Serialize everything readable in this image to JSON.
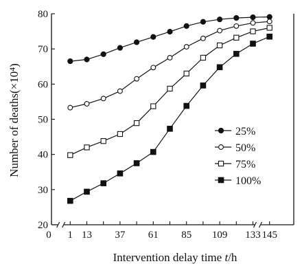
{
  "chart_data": {
    "type": "line",
    "xlabel": "Intervention delay time",
    "xlabel_var": "t",
    "xlabel_unit": "/h",
    "ylabel": "Number of deaths",
    "ylabel_unit": "(×10⁴)",
    "x": [
      "0",
      "1",
      "13",
      "",
      "37",
      "",
      "61",
      "",
      "85",
      "",
      "109",
      "",
      "133",
      "145"
    ],
    "ylim": [
      20,
      80
    ],
    "yticks": [
      20,
      30,
      40,
      50,
      60,
      70,
      80
    ],
    "grid": false,
    "legend_position": "center-right",
    "series": [
      {
        "name": "25%",
        "marker": "filled-circle",
        "points": [
          [
            1,
            66.5
          ],
          [
            13,
            67.0
          ],
          [
            25,
            68.5
          ],
          [
            37,
            70.3
          ],
          [
            49,
            71.9
          ],
          [
            61,
            73.4
          ],
          [
            73,
            74.9
          ],
          [
            85,
            76.5
          ],
          [
            97,
            77.7
          ],
          [
            109,
            78.4
          ],
          [
            121,
            78.8
          ],
          [
            133,
            79.0
          ],
          [
            145,
            79.1
          ]
        ]
      },
      {
        "name": "50%",
        "marker": "open-circle",
        "points": [
          [
            1,
            53.3
          ],
          [
            13,
            54.4
          ],
          [
            25,
            55.9
          ],
          [
            37,
            58.0
          ],
          [
            49,
            61.5
          ],
          [
            61,
            64.7
          ],
          [
            73,
            67.5
          ],
          [
            85,
            70.6
          ],
          [
            97,
            73.0
          ],
          [
            109,
            75.2
          ],
          [
            121,
            76.5
          ],
          [
            133,
            77.4
          ],
          [
            145,
            77.8
          ]
        ]
      },
      {
        "name": "75%",
        "marker": "open-square",
        "points": [
          [
            1,
            39.8
          ],
          [
            13,
            42.0
          ],
          [
            25,
            43.8
          ],
          [
            37,
            45.8
          ],
          [
            49,
            48.9
          ],
          [
            61,
            53.7
          ],
          [
            73,
            58.7
          ],
          [
            85,
            63.0
          ],
          [
            97,
            67.5
          ],
          [
            109,
            71.0
          ],
          [
            121,
            73.2
          ],
          [
            133,
            75.0
          ],
          [
            145,
            76.0
          ]
        ]
      },
      {
        "name": "100%",
        "marker": "filled-square",
        "points": [
          [
            1,
            26.8
          ],
          [
            13,
            29.4
          ],
          [
            25,
            31.8
          ],
          [
            37,
            34.6
          ],
          [
            49,
            37.5
          ],
          [
            61,
            40.7
          ],
          [
            73,
            47.3
          ],
          [
            85,
            53.8
          ],
          [
            97,
            59.6
          ],
          [
            109,
            64.8
          ],
          [
            121,
            68.6
          ],
          [
            133,
            71.5
          ],
          [
            145,
            73.5
          ]
        ]
      }
    ]
  }
}
